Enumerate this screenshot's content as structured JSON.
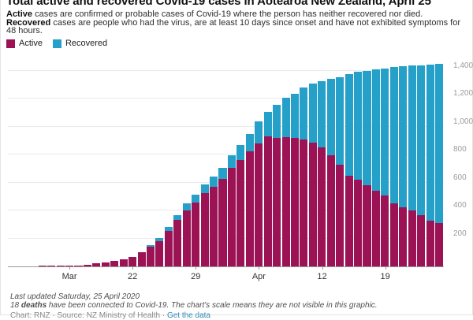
{
  "title": "Total active and recovered Covid-19 cases in Aotearoa New Zealand, April 25",
  "description": {
    "line1_lead": "Active",
    "line1_rest": " cases are confirmed or probable cases of Covid-19 where the person has neither recovered nor died.",
    "line2_lead": "Recovered",
    "line2_rest": " cases are people who had the virus, are at least 10 days since onset and have not exhibited symptoms for 48 hours."
  },
  "legend": {
    "active_label": "Active",
    "recovered_label": "Recovered"
  },
  "colors": {
    "active": "#9b1355",
    "recovered": "#25a0c9",
    "gridline": "#ebebeb",
    "axis": "#9a9a9a"
  },
  "chart_data": {
    "type": "bar",
    "stacked": true,
    "title": "Total active and recovered Covid-19 cases in Aotearoa New Zealand, April 25",
    "xlabel": "",
    "ylabel": "",
    "ylim": [
      0,
      1456
    ],
    "grid": true,
    "legend_position": "top-left",
    "y_axis_side": "right",
    "categories": [
      "Mar 12",
      "Mar 13",
      "Mar 14",
      "Mar 15",
      "Mar 16",
      "Mar 17",
      "Mar 18",
      "Mar 19",
      "Mar 20",
      "Mar 21",
      "Mar 22",
      "Mar 23",
      "Mar 24",
      "Mar 25",
      "Mar 26",
      "Mar 27",
      "Mar 28",
      "Mar 29",
      "Mar 30",
      "Mar 31",
      "Apr 1",
      "Apr 2",
      "Apr 3",
      "Apr 4",
      "Apr 5",
      "Apr 6",
      "Apr 7",
      "Apr 8",
      "Apr 9",
      "Apr 10",
      "Apr 11",
      "Apr 12",
      "Apr 13",
      "Apr 14",
      "Apr 15",
      "Apr 16",
      "Apr 17",
      "Apr 18",
      "Apr 19",
      "Apr 20",
      "Apr 21",
      "Apr 22",
      "Apr 23",
      "Apr 24",
      "Apr 25"
    ],
    "series": [
      {
        "name": "Active",
        "color": "#9b1355",
        "values": [
          5,
          5,
          6,
          8,
          8,
          12,
          20,
          28,
          39,
          52,
          66,
          102,
          143,
          183,
          256,
          331,
          401,
          457,
          525,
          572,
          625,
          704,
          764,
          822,
          882,
          929,
          918,
          927,
          921,
          908,
          886,
          855,
          798,
          729,
          649,
          622,
          582,
          542,
          507,
          454,
          426,
          401,
          365,
          326,
          310
        ]
      },
      {
        "name": "Recovered",
        "color": "#25a0c9",
        "values": [
          0,
          0,
          0,
          0,
          0,
          0,
          0,
          0,
          0,
          0,
          0,
          0,
          12,
          22,
          27,
          37,
          50,
          56,
          63,
          74,
          82,
          92,
          103,
          127,
          156,
          176,
          241,
          282,
          317,
          373,
          422,
          471,
          546,
          628,
          728,
          770,
          816,
          867,
          912,
          974,
          1006,
          1036,
          1075,
          1118,
          1142
        ]
      }
    ],
    "x_tick_labels": [
      {
        "index": 3,
        "label": "Mar"
      },
      {
        "index": 10,
        "label": "22"
      },
      {
        "index": 17,
        "label": "29"
      },
      {
        "index": 24,
        "label": "Apr"
      },
      {
        "index": 31,
        "label": "12"
      },
      {
        "index": 38,
        "label": "19"
      }
    ],
    "y_ticks": [
      {
        "value": 200,
        "label": "200"
      },
      {
        "value": 400,
        "label": "400"
      },
      {
        "value": 600,
        "label": "600"
      },
      {
        "value": 800,
        "label": "800"
      },
      {
        "value": 1000,
        "label": "1,000"
      },
      {
        "value": 1200,
        "label": "1,200"
      },
      {
        "value": 1400,
        "label": "1,400"
      }
    ]
  },
  "footer": {
    "line1": "Last updated Saturday, 25 April 2020",
    "line2_pre": "18 ",
    "line2_bold": "deaths",
    "line2_rest": " have been connected to Covid-19. The chart's scale means they are not visible in this graphic.",
    "credit_pre": "Chart: RNZ · Source: NZ Ministry of Health · ",
    "credit_link": "Get the data"
  }
}
